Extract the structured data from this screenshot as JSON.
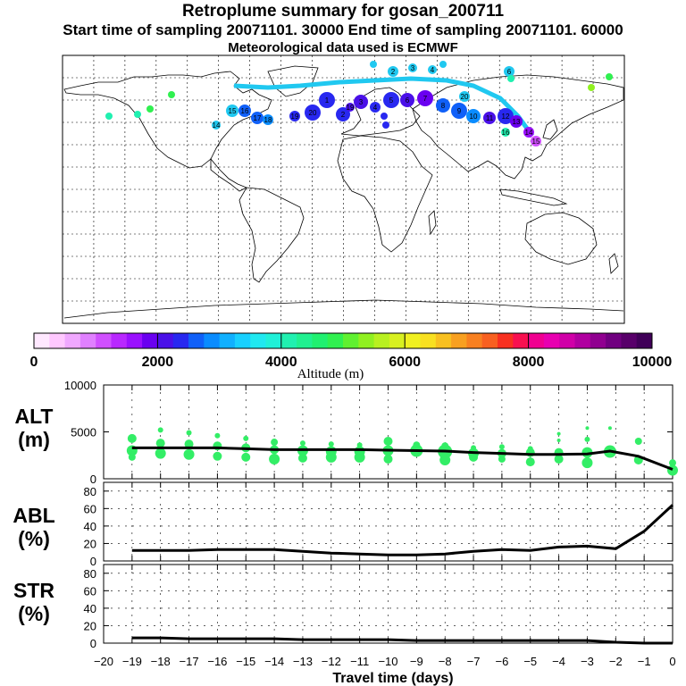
{
  "title": {
    "line1": "Retroplume summary for gosan_200711",
    "line2": "Start time of sampling 20071101. 30000     End time of sampling 20071101. 60000",
    "line3": "Meteorological data used is ECMWF"
  },
  "colors": {
    "background": "#ffffff",
    "axis": "#000000",
    "grid": "#000000",
    "line": "#000000",
    "points": "#33ee66"
  },
  "chart_data": [
    {
      "type": "map",
      "name": "retroplume-map",
      "description_label": "World map with retroplume cluster positions",
      "cluster_label_values": [
        "1",
        "2",
        "3",
        "4",
        "5",
        "6",
        "7",
        "8",
        "9",
        "10",
        "11",
        "12",
        "13",
        "14",
        "15",
        "16",
        "17",
        "18",
        "19",
        "20"
      ]
    },
    {
      "type": "colorbar",
      "name": "altitude-colorbar",
      "xlabel": "Altitude (m)",
      "range": [
        0,
        10000
      ],
      "tick_labels": [
        "0",
        "2000",
        "4000",
        "6000",
        "8000",
        "10000"
      ],
      "ticks": [
        0,
        2000,
        4000,
        6000,
        8000,
        10000
      ],
      "colors": [
        "#ffe8ff",
        "#ffc8ff",
        "#f0a8ff",
        "#e080ff",
        "#d050ff",
        "#b828ff",
        "#9a10ff",
        "#6a00f0",
        "#4a10e8",
        "#2828f0",
        "#1060f8",
        "#0a8cff",
        "#10b0ff",
        "#18d0ff",
        "#20e8f0",
        "#20f0d8",
        "#20f0b0",
        "#20f090",
        "#20f070",
        "#30f050",
        "#60f030",
        "#90f020",
        "#b8f020",
        "#d8f020",
        "#f0f020",
        "#f8e020",
        "#f8c020",
        "#f8a020",
        "#f88020",
        "#f86020",
        "#f83020",
        "#f81050",
        "#f00090",
        "#e800b0",
        "#d000a8",
        "#b000a0",
        "#900090",
        "#700080",
        "#58006a",
        "#400058"
      ]
    },
    {
      "type": "line+scatter",
      "name": "alt-panel",
      "ylabel": "ALT\n(m)",
      "ylabel_line1": "ALT",
      "ylabel_line2": "(m)",
      "ylim": [
        0,
        10000
      ],
      "ytick_labels": [
        "10000",
        "5000",
        "0"
      ],
      "yticks": [
        10000,
        5000,
        0
      ],
      "x": [
        -19,
        -18,
        -17,
        -16,
        -15,
        -14,
        -13,
        -12,
        -11,
        -10,
        -9,
        -8,
        -7,
        -6,
        -5,
        -4,
        -3,
        -2.2,
        -1.2,
        0
      ],
      "line_values": [
        3300,
        3300,
        3300,
        3300,
        3200,
        3100,
        3100,
        3100,
        3100,
        3050,
        3000,
        2950,
        2800,
        2700,
        2600,
        2600,
        2650,
        2950,
        2400,
        1000
      ],
      "scatter": [
        {
          "x": -19,
          "y": [
            4300,
            3000,
            2300
          ],
          "s": [
            5,
            6,
            4
          ]
        },
        {
          "x": -18,
          "y": [
            5200,
            3800,
            2700
          ],
          "s": [
            3,
            5,
            6
          ]
        },
        {
          "x": -17,
          "y": [
            4900,
            3700,
            2600
          ],
          "s": [
            3,
            5,
            6
          ]
        },
        {
          "x": -16,
          "y": [
            4600,
            3500,
            2400
          ],
          "s": [
            3,
            5,
            5
          ]
        },
        {
          "x": -15,
          "y": [
            4300,
            3300,
            2300
          ],
          "s": [
            3,
            5,
            5
          ]
        },
        {
          "x": -14,
          "y": [
            3900,
            3100,
            2100
          ],
          "s": [
            4,
            5,
            6
          ]
        },
        {
          "x": -13,
          "y": [
            3800,
            3000,
            2200
          ],
          "s": [
            3,
            6,
            5
          ]
        },
        {
          "x": -12,
          "y": [
            3700,
            2900,
            2300
          ],
          "s": [
            3,
            6,
            6
          ]
        },
        {
          "x": -11,
          "y": [
            3600,
            2900,
            2300
          ],
          "s": [
            3,
            6,
            6
          ]
        },
        {
          "x": -10,
          "y": [
            4000,
            3000,
            2100
          ],
          "s": [
            5,
            6,
            5
          ]
        },
        {
          "x": -9,
          "y": [
            3600,
            3000
          ],
          "s": [
            4,
            7
          ]
        },
        {
          "x": -8,
          "y": [
            3500,
            2900,
            2000
          ],
          "s": [
            4,
            8,
            6
          ]
        },
        {
          "x": -7,
          "y": [
            3300,
            2700,
            2300
          ],
          "s": [
            3,
            6,
            5
          ]
        },
        {
          "x": -6,
          "y": [
            3400,
            2700,
            2100
          ],
          "s": [
            3,
            5,
            4
          ]
        },
        {
          "x": -5,
          "y": [
            3200,
            2800,
            1800
          ],
          "s": [
            3,
            5,
            5
          ]
        },
        {
          "x": -4,
          "y": [
            4800,
            4100,
            2800,
            2100
          ],
          "s": [
            2,
            2,
            5,
            5
          ]
        },
        {
          "x": -3,
          "y": [
            5400,
            4200,
            2800,
            1700
          ],
          "s": [
            2,
            3,
            6,
            6
          ]
        },
        {
          "x": -2.2,
          "y": [
            5400,
            3100,
            2900
          ],
          "s": [
            2,
            4,
            7
          ]
        },
        {
          "x": -1.2,
          "y": [
            4000,
            2000
          ],
          "s": [
            4,
            5
          ]
        },
        {
          "x": 0,
          "y": [
            1700,
            900
          ],
          "s": [
            4,
            6
          ]
        }
      ]
    },
    {
      "type": "line",
      "name": "abl-panel",
      "ylabel_line1": "ABL",
      "ylabel_line2": "(%)",
      "ylim": [
        0,
        90
      ],
      "ytick_labels": [
        "80",
        "60",
        "40",
        "20",
        "0"
      ],
      "yticks": [
        80,
        60,
        40,
        20,
        0
      ],
      "x": [
        -19,
        -18,
        -17,
        -16,
        -15,
        -14,
        -13,
        -12,
        -11,
        -10,
        -9,
        -8,
        -7,
        -6,
        -5,
        -4,
        -3,
        -2,
        -1,
        0
      ],
      "values": [
        12,
        12,
        12,
        13,
        13,
        13,
        11,
        9,
        8,
        7,
        7,
        8,
        11,
        13,
        12,
        16,
        17,
        14,
        34,
        64
      ]
    },
    {
      "type": "line",
      "name": "str-panel",
      "ylabel_line1": "STR",
      "ylabel_line2": "(%)",
      "ylim": [
        0,
        90
      ],
      "ytick_labels": [
        "80",
        "60",
        "40",
        "20",
        "0"
      ],
      "yticks": [
        80,
        60,
        40,
        20,
        0
      ],
      "xlabel": "Travel time (days)",
      "xtick_labels": [
        "−20",
        "−19",
        "−18",
        "−17",
        "−16",
        "−15",
        "−14",
        "−13",
        "−12",
        "−11",
        "−10",
        "−9",
        "−8",
        "−7",
        "−6",
        "−5",
        "−4",
        "−3",
        "−2",
        "−1",
        "0"
      ],
      "xticks": [
        -20,
        -19,
        -18,
        -17,
        -16,
        -15,
        -14,
        -13,
        -12,
        -11,
        -10,
        -9,
        -8,
        -7,
        -6,
        -5,
        -4,
        -3,
        -2,
        -1,
        0
      ],
      "x": [
        -19,
        -18,
        -17,
        -16,
        -15,
        -14,
        -13,
        -12,
        -11,
        -10,
        -9,
        -8,
        -7,
        -6,
        -5,
        -4,
        -3,
        -2,
        -1,
        0
      ],
      "values": [
        6,
        6,
        5,
        5,
        5,
        5,
        4,
        4,
        4,
        4,
        3,
        3,
        3,
        3,
        3,
        3,
        3,
        1,
        0,
        0
      ]
    }
  ]
}
